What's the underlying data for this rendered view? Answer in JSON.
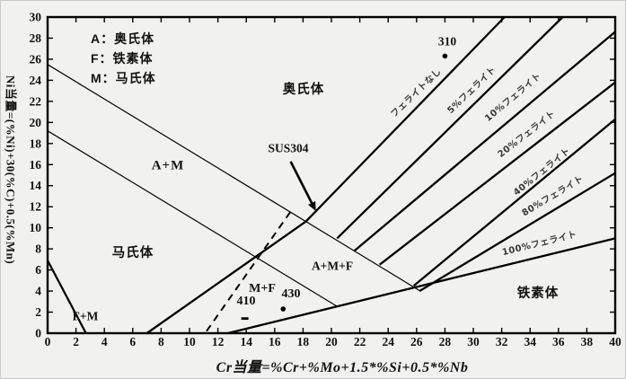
{
  "legend": {
    "lines": [
      "A：奥氏体",
      "F：铁素体",
      "M：马氏体"
    ]
  },
  "axes": {
    "x": {
      "label": "Cr当量=%Cr+%Mo+1.5*%Si+0.5*%Nb",
      "min": 0,
      "max": 40,
      "step": 2
    },
    "y": {
      "label": "Ni当量=(%Ni)+30(%C)+0.5(%Mn)",
      "min": 0,
      "max": 30,
      "step": 2
    }
  },
  "regions": {
    "austenite": "奥氏体",
    "am": "A+M",
    "martensite": "马氏体",
    "fm": "F+M",
    "mf": "M+F",
    "amf": "A+M+F",
    "ferrite": "铁素体"
  },
  "chart_data": {
    "type": "line",
    "title": "",
    "xlabel": "Cr当量=%Cr+%Mo+1.5*%Si+0.5*%Nb",
    "ylabel": "Ni当量=(%Ni)+30(%C)+0.5(%Mn)",
    "xlim": [
      0,
      40
    ],
    "ylim": [
      0,
      30
    ],
    "grid": false,
    "lines": [
      {
        "name": "fm-boundary",
        "style": "bold",
        "points": [
          [
            0,
            6.9
          ],
          [
            2.7,
            0
          ]
        ]
      },
      {
        "name": "austenite-lower-boundary",
        "style": "thin",
        "points": [
          [
            0,
            25.5
          ],
          [
            26.2,
            4.05
          ]
        ]
      },
      {
        "name": "am-martensite-boundary",
        "style": "thin",
        "points": [
          [
            0,
            19.2
          ],
          [
            20.4,
            2.55
          ]
        ]
      },
      {
        "name": "martensite-right-and-0pct-ferrite",
        "style": "bold",
        "label": "フェライトなし",
        "points": [
          [
            7,
            0
          ],
          [
            18.2,
            10.6
          ],
          [
            32.2,
            30
          ]
        ]
      },
      {
        "name": "mf-dashed-boundary",
        "style": "dashed",
        "points": [
          [
            11.2,
            0.2
          ],
          [
            17.1,
            11.5
          ]
        ]
      },
      {
        "name": "ferrite-100pct",
        "style": "bold",
        "label": "100%フェライト",
        "points": [
          [
            12.7,
            0
          ],
          [
            40,
            9.0
          ]
        ]
      },
      {
        "name": "ferrite-5pct",
        "style": "bold",
        "label": "5%フェライト",
        "points": [
          [
            20.4,
            9.0
          ],
          [
            36.3,
            30
          ]
        ]
      },
      {
        "name": "ferrite-10pct",
        "style": "bold",
        "label": "10%フェライト",
        "points": [
          [
            21.6,
            7.8
          ],
          [
            40,
            28.6
          ]
        ]
      },
      {
        "name": "ferrite-20pct",
        "style": "bold",
        "label": "20%フェライト",
        "points": [
          [
            23.4,
            6.5
          ],
          [
            40,
            23.8
          ]
        ]
      },
      {
        "name": "ferrite-40pct",
        "style": "bold",
        "label": "40%フェライト",
        "points": [
          [
            25.8,
            4.5
          ],
          [
            40,
            20.3
          ]
        ]
      },
      {
        "name": "ferrite-80pct",
        "style": "bold",
        "label": "80%フェライト",
        "points": [
          [
            26.2,
            4.0
          ],
          [
            40,
            15.2
          ]
        ]
      }
    ],
    "points": [
      {
        "label": "310",
        "x": 28.0,
        "y": 26.3,
        "marker": "dot"
      },
      {
        "label": "SUS304",
        "x": 18.9,
        "y": 11.6,
        "marker": "arrow"
      },
      {
        "label": "410",
        "x": 13.9,
        "y": 1.4,
        "marker": "dash"
      },
      {
        "label": "430",
        "x": 16.6,
        "y": 2.3,
        "marker": "dot"
      }
    ],
    "colors": {
      "line": "#000000",
      "text": "#111111",
      "background": "#f1f1ef"
    }
  }
}
